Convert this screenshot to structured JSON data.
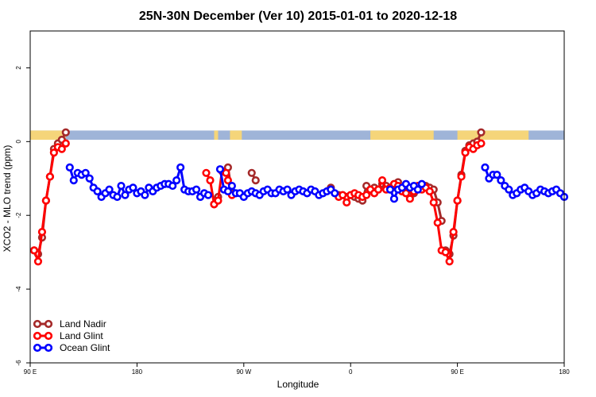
{
  "chart_data": {
    "type": "line",
    "title": "25N-30N December (Ver 10)   2015-01-01 to 2020-12-18",
    "xlabel": "Longitude",
    "ylabel": "XCO2 - MLO trend (ppm)",
    "xlim": [
      -90,
      180
    ],
    "ylim": [
      -6,
      3
    ],
    "x_ticks": [
      {
        "value": -90,
        "label": "90 E"
      },
      {
        "value": -36,
        "label": "180"
      },
      {
        "value": 18,
        "label": "90 W"
      },
      {
        "value": 72,
        "label": "0"
      },
      {
        "value": 126,
        "label": "90 E"
      },
      {
        "value": 180,
        "label": "180"
      }
    ],
    "y_ticks": [
      {
        "value": 2,
        "label": "2"
      },
      {
        "value": 0,
        "label": "0"
      },
      {
        "value": -2,
        "label": "-2"
      },
      {
        "value": -4,
        "label": "-4"
      },
      {
        "value": -6,
        "label": "-6"
      }
    ],
    "land_mask_colors": {
      "ocean": "#9fb4d8",
      "land": "#f5d57a"
    },
    "land_mask_land_ranges": [
      [
        -90,
        -72
      ],
      [
        3,
        5
      ],
      [
        11,
        17
      ],
      [
        82,
        114
      ],
      [
        126,
        162
      ]
    ],
    "legend_position": "bottom-left",
    "series": [
      {
        "name": "Land Nadir",
        "color": "#a52a2a",
        "segments": [
          {
            "x": [
              -88,
              -86,
              -84,
              -82,
              -80,
              -78,
              -76,
              -74,
              -72
            ],
            "y": [
              -2.95,
              -3.05,
              -2.6,
              -1.6,
              -0.95,
              -0.2,
              -0.05,
              0.05,
              0.25
            ]
          },
          {
            "x": [
              3,
              5
            ],
            "y": [
              -1.7,
              -1.5
            ]
          },
          {
            "x": [
              10,
              12
            ],
            "y": [
              -0.7,
              -1.4
            ]
          },
          {
            "x": [
              22,
              24
            ],
            "y": [
              -0.85,
              -1.05
            ]
          },
          {
            "x": [
              62,
              66,
              68,
              70,
              72,
              74,
              76,
              78,
              80,
              82,
              84,
              86,
              88,
              90,
              92,
              94,
              96,
              98,
              100,
              102,
              104,
              106,
              108,
              110,
              112,
              114,
              116,
              118
            ],
            "y": [
              -1.25,
              -1.45,
              -1.45,
              -1.5,
              -1.45,
              -1.5,
              -1.55,
              -1.6,
              -1.2,
              -1.3,
              -1.25,
              -1.3,
              -1.15,
              -1.2,
              -1.3,
              -1.2,
              -1.1,
              -1.35,
              -1.2,
              -1.3,
              -1.4,
              -1.3,
              -1.25,
              -1.2,
              -1.25,
              -1.3,
              -1.65,
              -2.15
            ]
          },
          {
            "x": [
              120,
              122,
              124,
              126,
              128,
              130,
              132,
              134,
              136,
              138
            ],
            "y": [
              -2.95,
              -3.05,
              -2.55,
              -1.6,
              -0.9,
              -0.25,
              -0.1,
              -0.05,
              0.0,
              0.25
            ]
          }
        ]
      },
      {
        "name": "Land Glint",
        "color": "#ff0000",
        "segments": [
          {
            "x": [
              -88,
              -86,
              -84,
              -82,
              -80,
              -78,
              -76,
              -74,
              -72
            ],
            "y": [
              -2.95,
              -3.25,
              -2.45,
              -1.6,
              -0.95,
              -0.3,
              -0.15,
              -0.2,
              -0.05
            ]
          },
          {
            "x": [
              -1,
              1,
              3,
              5,
              7,
              9
            ],
            "y": [
              -0.85,
              -1.05,
              -1.7,
              -1.6,
              -0.8,
              -0.85
            ]
          },
          {
            "x": [
              10,
              12
            ],
            "y": [
              -1.05,
              -1.45
            ]
          },
          {
            "x": [
              66,
              68,
              70,
              72,
              74,
              76,
              78,
              80,
              82,
              84,
              86,
              88,
              90,
              92,
              94,
              96,
              98,
              100,
              102,
              104,
              106,
              108,
              110,
              112,
              114,
              116,
              118
            ],
            "y": [
              -1.5,
              -1.45,
              -1.65,
              -1.45,
              -1.4,
              -1.45,
              -1.5,
              -1.45,
              -1.3,
              -1.4,
              -1.3,
              -1.05,
              -1.3,
              -1.25,
              -1.15,
              -1.2,
              -1.35,
              -1.4,
              -1.55,
              -1.35,
              -1.2,
              -1.3,
              -1.25,
              -1.35,
              -1.65,
              -2.2,
              -2.95
            ]
          },
          {
            "x": [
              120,
              122,
              124,
              126,
              128,
              130,
              132,
              134,
              136,
              138
            ],
            "y": [
              -3.0,
              -3.25,
              -2.45,
              -1.6,
              -0.95,
              -0.3,
              -0.15,
              -0.2,
              -0.1,
              -0.05
            ]
          }
        ]
      },
      {
        "name": "Ocean Glint",
        "color": "#0000ff",
        "segments": [
          {
            "x": [
              -70,
              -68,
              -66,
              -64,
              -62,
              -60,
              -58,
              -56,
              -54,
              -52,
              -50,
              -48,
              -46,
              -44,
              -42,
              -40,
              -38,
              -36,
              -34,
              -32,
              -30,
              -28,
              -26,
              -24,
              -22,
              -20,
              -18,
              -16,
              -14,
              -12,
              -10,
              -8,
              -6,
              -4,
              -2,
              0
            ],
            "y": [
              -0.7,
              -1.05,
              -0.85,
              -0.9,
              -0.85,
              -1.0,
              -1.25,
              -1.35,
              -1.5,
              -1.4,
              -1.3,
              -1.45,
              -1.5,
              -1.2,
              -1.45,
              -1.3,
              -1.25,
              -1.4,
              -1.35,
              -1.45,
              -1.25,
              -1.35,
              -1.25,
              -1.2,
              -1.15,
              -1.15,
              -1.2,
              -1.05,
              -0.7,
              -1.3,
              -1.35,
              -1.35,
              -1.3,
              -1.5,
              -1.4,
              -1.45
            ]
          },
          {
            "x": [
              6,
              8,
              10,
              12,
              14,
              16,
              18,
              20,
              22,
              24,
              26,
              28,
              30,
              32,
              34,
              36,
              38,
              40,
              42,
              44,
              46,
              48,
              50,
              52,
              54,
              56,
              58,
              60,
              62,
              64
            ],
            "y": [
              -0.75,
              -1.3,
              -1.35,
              -1.2,
              -1.4,
              -1.4,
              -1.5,
              -1.4,
              -1.35,
              -1.4,
              -1.45,
              -1.35,
              -1.3,
              -1.4,
              -1.4,
              -1.3,
              -1.35,
              -1.3,
              -1.45,
              -1.35,
              -1.3,
              -1.35,
              -1.4,
              -1.3,
              -1.35,
              -1.45,
              -1.4,
              -1.35,
              -1.3,
              -1.4
            ]
          },
          {
            "x": [
              92,
              94,
              96,
              98,
              100,
              102,
              104,
              106,
              108
            ],
            "y": [
              -1.3,
              -1.55,
              -1.3,
              -1.25,
              -1.15,
              -1.25,
              -1.2,
              -1.3,
              -1.15
            ]
          },
          {
            "x": [
              140,
              142,
              144,
              146,
              148,
              150,
              152,
              154,
              156,
              158,
              160,
              162,
              164,
              166,
              168,
              170,
              172,
              174,
              176,
              178,
              180
            ],
            "y": [
              -0.7,
              -1.0,
              -0.9,
              -0.9,
              -1.05,
              -1.2,
              -1.3,
              -1.45,
              -1.4,
              -1.3,
              -1.25,
              -1.35,
              -1.45,
              -1.4,
              -1.3,
              -1.35,
              -1.4,
              -1.35,
              -1.3,
              -1.4,
              -1.5
            ]
          }
        ]
      }
    ]
  }
}
